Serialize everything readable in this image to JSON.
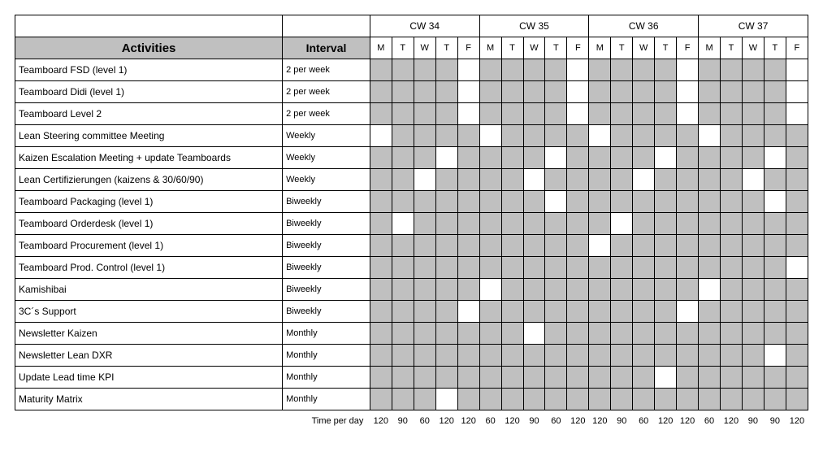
{
  "headers": {
    "activities": "Activities",
    "interval": "Interval",
    "weeks": [
      "CW 34",
      "CW 35",
      "CW 36",
      "CW 37"
    ],
    "days": [
      "M",
      "T",
      "W",
      "T",
      "F"
    ]
  },
  "footer": {
    "label": "Time per day",
    "values": [
      120,
      90,
      60,
      120,
      120,
      60,
      120,
      90,
      60,
      120,
      120,
      90,
      60,
      120,
      120,
      60,
      120,
      90,
      90,
      120
    ]
  },
  "colors": {
    "shaded": "#c0c0c0",
    "open": "#ffffff",
    "border": "#000000"
  },
  "rows": [
    {
      "activity": "Teamboard FSD (level 1)",
      "interval": "2 per week",
      "cells": [
        1,
        1,
        1,
        1,
        0,
        1,
        1,
        1,
        1,
        0,
        1,
        1,
        1,
        1,
        0,
        1,
        1,
        1,
        1,
        0
      ]
    },
    {
      "activity": "Teamboard Didi (level 1)",
      "interval": "2 per week",
      "cells": [
        1,
        1,
        1,
        1,
        0,
        1,
        1,
        1,
        1,
        0,
        1,
        1,
        1,
        1,
        0,
        1,
        1,
        1,
        1,
        0
      ]
    },
    {
      "activity": "Teamboard Level 2",
      "interval": "2 per week",
      "cells": [
        1,
        1,
        1,
        1,
        0,
        1,
        1,
        1,
        1,
        0,
        1,
        1,
        1,
        1,
        0,
        1,
        1,
        1,
        1,
        0
      ]
    },
    {
      "activity": "Lean Steering committee Meeting",
      "interval": "Weekly",
      "cells": [
        0,
        1,
        1,
        1,
        1,
        0,
        1,
        1,
        1,
        1,
        0,
        1,
        1,
        1,
        1,
        0,
        1,
        1,
        1,
        1
      ]
    },
    {
      "activity": "Kaizen Escalation Meeting + update Teamboards",
      "interval": "Weekly",
      "cells": [
        1,
        1,
        1,
        0,
        1,
        1,
        1,
        1,
        0,
        1,
        1,
        1,
        1,
        0,
        1,
        1,
        1,
        1,
        0,
        1
      ]
    },
    {
      "activity": "Lean Certifizierungen (kaizens & 30/60/90)",
      "interval": "Weekly",
      "cells": [
        1,
        1,
        0,
        1,
        1,
        1,
        1,
        0,
        1,
        1,
        1,
        1,
        0,
        1,
        1,
        1,
        1,
        0,
        1,
        1
      ]
    },
    {
      "activity": "Teamboard Packaging (level 1)",
      "interval": "Biweekly",
      "cells": [
        1,
        1,
        1,
        1,
        1,
        1,
        1,
        1,
        0,
        1,
        1,
        1,
        1,
        1,
        1,
        1,
        1,
        1,
        0,
        1
      ]
    },
    {
      "activity": "Teamboard Orderdesk (level 1)",
      "interval": "Biweekly",
      "cells": [
        1,
        0,
        1,
        1,
        1,
        1,
        1,
        1,
        1,
        1,
        1,
        0,
        1,
        1,
        1,
        1,
        1,
        1,
        1,
        1
      ]
    },
    {
      "activity": "Teamboard Procurement (level 1)",
      "interval": "Biweekly",
      "cells": [
        1,
        1,
        1,
        1,
        1,
        1,
        1,
        1,
        1,
        1,
        0,
        1,
        1,
        1,
        1,
        1,
        1,
        1,
        1,
        1
      ]
    },
    {
      "activity": "Teamboard Prod. Control (level 1)",
      "interval": "Biweekly",
      "cells": [
        1,
        1,
        1,
        1,
        1,
        1,
        1,
        1,
        1,
        1,
        1,
        1,
        1,
        1,
        1,
        1,
        1,
        1,
        1,
        0
      ]
    },
    {
      "activity": "Kamishibai",
      "interval": "Biweekly",
      "cells": [
        1,
        1,
        1,
        1,
        1,
        0,
        1,
        1,
        1,
        1,
        1,
        1,
        1,
        1,
        1,
        0,
        1,
        1,
        1,
        1
      ]
    },
    {
      "activity": "3C´s Support",
      "interval": "Biweekly",
      "cells": [
        1,
        1,
        1,
        1,
        0,
        1,
        1,
        1,
        1,
        1,
        1,
        1,
        1,
        1,
        0,
        1,
        1,
        1,
        1,
        1
      ]
    },
    {
      "activity": "Newsletter Kaizen",
      "interval": "Monthly",
      "cells": [
        1,
        1,
        1,
        1,
        1,
        1,
        1,
        0,
        1,
        1,
        1,
        1,
        1,
        1,
        1,
        1,
        1,
        1,
        1,
        1
      ]
    },
    {
      "activity": "Newsletter Lean DXR",
      "interval": "Monthly",
      "cells": [
        1,
        1,
        1,
        1,
        1,
        1,
        1,
        1,
        1,
        1,
        1,
        1,
        1,
        1,
        1,
        1,
        1,
        1,
        0,
        1
      ]
    },
    {
      "activity": "Update Lead time KPI",
      "interval": "Monthly",
      "cells": [
        1,
        1,
        1,
        1,
        1,
        1,
        1,
        1,
        1,
        1,
        1,
        1,
        1,
        0,
        1,
        1,
        1,
        1,
        1,
        1
      ]
    },
    {
      "activity": "Maturity Matrix",
      "interval": "Monthly",
      "cells": [
        1,
        1,
        1,
        0,
        1,
        1,
        1,
        1,
        1,
        1,
        1,
        1,
        1,
        1,
        1,
        1,
        1,
        1,
        1,
        1
      ]
    }
  ]
}
